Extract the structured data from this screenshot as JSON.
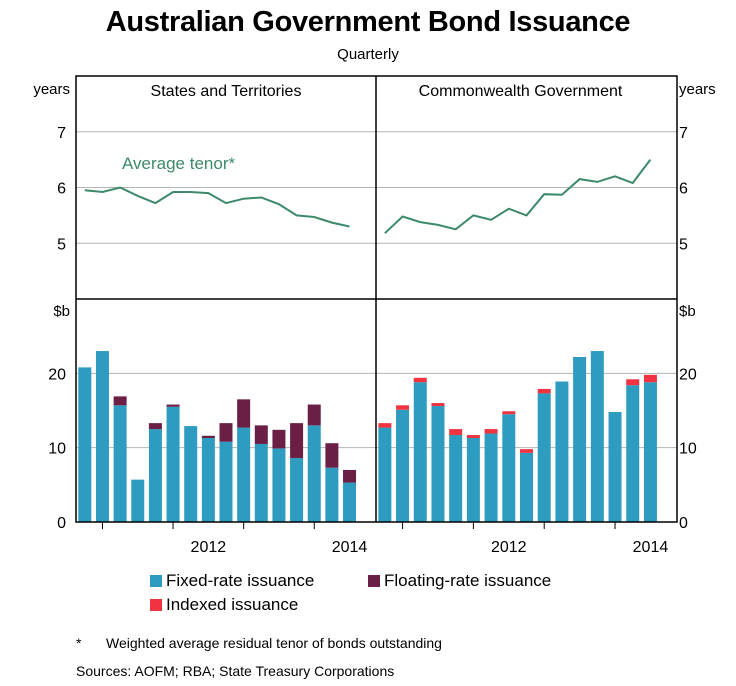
{
  "title": "Australian Government Bond Issuance",
  "subtitle": "Quarterly",
  "colors": {
    "fixed": "#2e9cc0",
    "floating": "#6b1f44",
    "indexed": "#ef3340",
    "tenor": "#3c8a6a",
    "axis": "#000000",
    "grid": "#b4b4b4"
  },
  "chart_data": {
    "type": "bar",
    "panels": [
      "States and Territories",
      "Commonwealth Government"
    ],
    "x_tick_labels": [
      "2012",
      "2014"
    ],
    "top": {
      "type": "line",
      "unit": "years",
      "yticks": [
        "5",
        "6",
        "7"
      ],
      "ylim": [
        4,
        8
      ],
      "annotation": "Average tenor*",
      "states_x": [
        2010.75,
        2011.0,
        2011.25,
        2011.5,
        2011.75,
        2012.0,
        2012.25,
        2012.5,
        2012.75,
        2013.0,
        2013.25,
        2013.5,
        2013.75,
        2014.0,
        2014.25,
        2014.5
      ],
      "states_y": [
        5.95,
        5.92,
        6.0,
        5.85,
        5.72,
        5.92,
        5.92,
        5.9,
        5.72,
        5.8,
        5.82,
        5.7,
        5.5,
        5.47,
        5.37,
        5.3
      ],
      "commonwealth_x": [
        2010.75,
        2011.0,
        2011.25,
        2011.5,
        2011.75,
        2012.0,
        2012.25,
        2012.5,
        2012.75,
        2013.0,
        2013.25,
        2013.5,
        2013.75,
        2014.0,
        2014.25,
        2014.5
      ],
      "commonwealth_y": [
        5.18,
        5.48,
        5.38,
        5.33,
        5.25,
        5.5,
        5.42,
        5.62,
        5.5,
        5.88,
        5.87,
        6.15,
        6.1,
        6.2,
        6.08,
        6.5
      ]
    },
    "bottom": {
      "type": "bar",
      "unit": "$b",
      "yticks": [
        "0",
        "10",
        "20"
      ],
      "ylim": [
        0,
        30
      ],
      "series": [
        {
          "name": "Fixed-rate issuance",
          "color": "#2e9cc0"
        },
        {
          "name": "Floating-rate issuance",
          "color": "#6b1f44"
        },
        {
          "name": "Indexed issuance",
          "color": "#ef3340"
        }
      ],
      "states": {
        "x": [
          2010.75,
          2011.0,
          2011.25,
          2011.5,
          2011.75,
          2012.0,
          2012.25,
          2012.5,
          2012.75,
          2013.0,
          2013.25,
          2013.5,
          2013.75,
          2014.0,
          2014.25,
          2014.5
        ],
        "fixed": [
          20.8,
          23.0,
          15.7,
          5.7,
          12.5,
          15.5,
          12.9,
          11.3,
          10.8,
          12.7,
          10.5,
          9.9,
          8.6,
          13.0,
          7.3,
          5.3
        ],
        "floating": [
          0,
          0,
          1.2,
          0,
          0.8,
          0.3,
          0,
          0.3,
          2.5,
          3.8,
          2.5,
          2.5,
          4.7,
          2.8,
          3.3,
          1.7
        ],
        "indexed": [
          0,
          0,
          0,
          0,
          0,
          0,
          0,
          0,
          0,
          0,
          0,
          0,
          0,
          0,
          0,
          0
        ]
      },
      "commonwealth": {
        "x": [
          2010.75,
          2011.0,
          2011.25,
          2011.5,
          2011.75,
          2012.0,
          2012.25,
          2012.5,
          2012.75,
          2013.0,
          2013.25,
          2013.5,
          2013.75,
          2014.0,
          2014.25,
          2014.5
        ],
        "fixed": [
          12.7,
          15.1,
          18.8,
          15.6,
          11.7,
          11.3,
          11.9,
          14.5,
          9.3,
          17.3,
          18.9,
          22.2,
          23.0,
          14.8,
          18.4,
          18.8
        ],
        "floating": [
          0,
          0,
          0,
          0,
          0,
          0,
          0,
          0,
          0,
          0,
          0,
          0,
          0,
          0,
          0,
          0
        ],
        "indexed": [
          0.6,
          0.6,
          0.6,
          0.4,
          0.8,
          0.4,
          0.6,
          0.4,
          0.5,
          0.6,
          0,
          0,
          0,
          0,
          0.8,
          1.0
        ]
      }
    }
  },
  "footnote": {
    "marker": "*",
    "text": "Weighted average residual tenor of bonds outstanding"
  },
  "sources": "Sources: AOFM; RBA; State Treasury Corporations"
}
